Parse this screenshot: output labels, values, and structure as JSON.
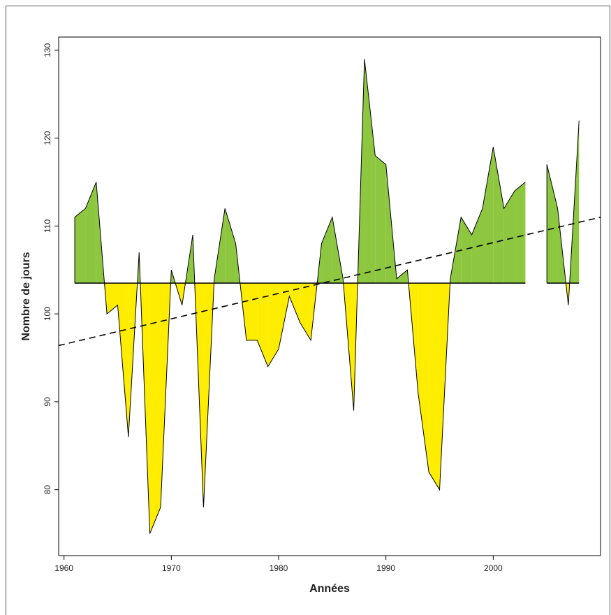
{
  "chart_data": {
    "type": "area",
    "xlabel": "Années",
    "ylabel": "Nombre de jours",
    "xlim": [
      1959.5,
      2010
    ],
    "ylim": [
      72.5,
      131.5
    ],
    "x_ticks": [
      1960,
      1970,
      1980,
      1990,
      2000
    ],
    "y_ticks": [
      80,
      90,
      100,
      110,
      120,
      130
    ],
    "baseline": 103.5,
    "above_color": "#8dc63f",
    "below_color": "#ffed00",
    "grid": false,
    "legend": "none",
    "series": [
      {
        "x": [
          1961,
          1962,
          1963,
          1964,
          1965,
          1966,
          1967,
          1968,
          1969,
          1970,
          1971,
          1972,
          1973,
          1974,
          1975,
          1976,
          1977,
          1978,
          1979,
          1980,
          1981,
          1982,
          1983,
          1984,
          1985,
          1986,
          1987,
          1988,
          1989,
          1990,
          1991,
          1992,
          1993,
          1994,
          1995,
          1996,
          1997,
          1998,
          1999,
          2000,
          2001,
          2002,
          2003,
          2004,
          2005,
          2006,
          2007,
          2008
        ],
        "y": [
          111,
          112,
          115,
          100,
          101,
          86,
          107,
          75,
          78,
          105,
          101,
          109,
          78,
          104,
          112,
          108,
          97,
          97,
          94,
          96,
          102,
          99,
          97,
          108,
          111,
          104,
          89,
          129,
          118,
          117,
          104,
          105,
          91,
          82,
          80,
          104,
          111,
          109,
          112,
          119,
          112,
          114,
          115,
          null,
          117,
          112,
          101,
          122
        ]
      }
    ],
    "trend": {
      "style": "dashed",
      "x": [
        1959.5,
        2010
      ],
      "y": [
        96.4,
        111.0
      ]
    }
  }
}
